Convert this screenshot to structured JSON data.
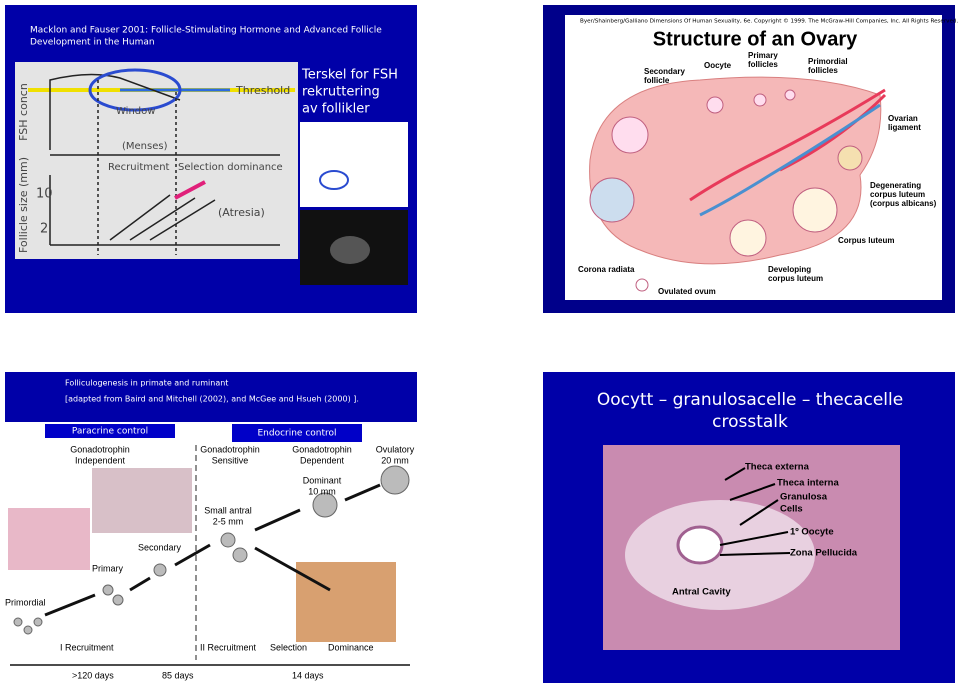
{
  "slides": [
    {
      "title": [
        "Macklon and Fauser 2001: Follicle-Stimulating Hormone and Advanced Follicle",
        "Development in the Human"
      ],
      "side_text": [
        "Terskel for FSH",
        "rekruttering",
        "av follikler"
      ],
      "labels": [
        {
          "lines": [
            "FSH concn"
          ]
        },
        {
          "lines": [
            "Threshold"
          ]
        },
        {
          "lines": [
            "Window"
          ]
        },
        {
          "lines": [
            "(Menses)"
          ]
        },
        {
          "lines": [
            "Recruitment"
          ]
        },
        {
          "lines": [
            "Selection dominance"
          ]
        },
        {
          "lines": [
            "Follicle size (mm)"
          ]
        },
        {
          "lines": [
            "10"
          ]
        },
        {
          "lines": [
            "2"
          ]
        },
        {
          "lines": [
            "(Atresia)"
          ]
        }
      ]
    },
    {
      "credit": "Byer/Shainberg/Galliano  Dimensions Of Human Sexuality, 6e. Copyright © 1999. The McGraw-Hill Companies, Inc. All Rights Reserved.",
      "title": [
        "Structure of an Ovary"
      ],
      "labels": [
        {
          "lines": [
            "Secondary",
            "follicle"
          ]
        },
        {
          "lines": [
            "Oocyte"
          ]
        },
        {
          "lines": [
            "Primary",
            "follicles"
          ]
        },
        {
          "lines": [
            "Primordial",
            "follicles"
          ]
        },
        {
          "lines": [
            "Ovarian",
            "ligament"
          ]
        },
        {
          "lines": [
            "Degenerating",
            "corpus luteum",
            "(corpus albicans)"
          ]
        },
        {
          "lines": [
            "Corpus luteum"
          ]
        },
        {
          "lines": [
            "Corona radiata"
          ]
        },
        {
          "lines": [
            "Ovulated ovum"
          ]
        },
        {
          "lines": [
            "Developing",
            "corpus luteum"
          ]
        }
      ]
    },
    {
      "title": [
        "Folliculogenesis in primate and ruminant",
        "[adapted from Baird and Mitchell (2002), and McGee and Hsueh (2000) ]."
      ],
      "boxes": [
        "Paracrine control",
        "Endocrine control"
      ],
      "labels": [
        {
          "lines": [
            "Gonadotrophin",
            "Independent"
          ]
        },
        {
          "lines": [
            "Gonadotrophin",
            "Sensitive"
          ]
        },
        {
          "lines": [
            "Gonadotrophin",
            "Dependent"
          ]
        },
        {
          "lines": [
            "Ovulatory",
            "20 mm"
          ]
        },
        {
          "lines": [
            "Dominant",
            "10 mm"
          ]
        },
        {
          "lines": [
            "Small antral",
            "2-5 mm"
          ]
        },
        {
          "lines": [
            "Secondary"
          ]
        },
        {
          "lines": [
            "Primary"
          ]
        },
        {
          "lines": [
            "Primordial"
          ]
        },
        {
          "lines": [
            "I Recruitment"
          ]
        },
        {
          "lines": [
            "II Recruitment"
          ]
        },
        {
          "lines": [
            "Selection"
          ]
        },
        {
          "lines": [
            "Dominance"
          ]
        },
        {
          "lines": [
            ">120 days"
          ]
        },
        {
          "lines": [
            "85 days"
          ]
        },
        {
          "lines": [
            "14 days"
          ]
        }
      ]
    },
    {
      "title": [
        "Oocytt – granulosacelle – thecacelle",
        "crosstalk"
      ],
      "labels": [
        {
          "lines": [
            "Theca externa"
          ]
        },
        {
          "lines": [
            "Theca interna"
          ]
        },
        {
          "lines": [
            "Granulosa",
            "Cells"
          ]
        },
        {
          "lines": [
            "1º Oocyte"
          ]
        },
        {
          "lines": [
            "Zona Pellucida"
          ]
        },
        {
          "lines": [
            "Antral Cavity"
          ]
        }
      ]
    }
  ]
}
